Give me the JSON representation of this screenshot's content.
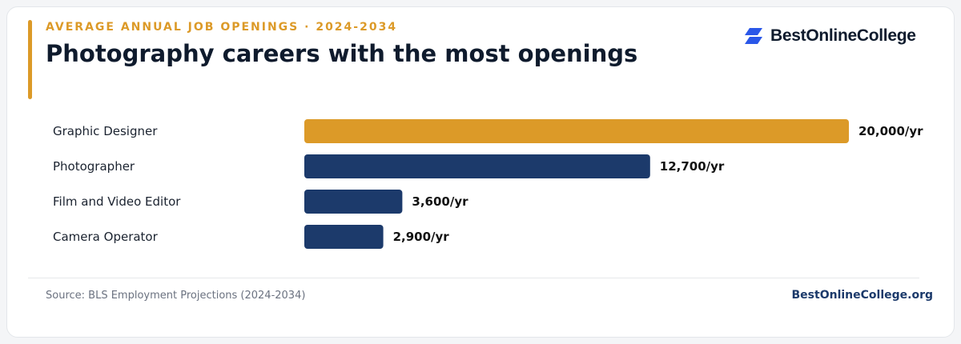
{
  "header": {
    "eyebrow": "AVERAGE ANNUAL JOB OPENINGS · 2024-2034",
    "title": "Photography careers with the most openings"
  },
  "logo": {
    "text": "BestOnlineCollege",
    "icon": "brand-slash-icon"
  },
  "footer": {
    "source": "Source: BLS Employment Projections (2024-2034)",
    "site": "BestOnlineCollege.org"
  },
  "colors": {
    "accent": "#dc9a28",
    "bar_primary": "#1c3a6b",
    "bar_highlight": "#dc9a28",
    "logo_blue": "#2a57e8"
  },
  "chart_data": {
    "type": "bar",
    "orientation": "horizontal",
    "categories": [
      "Graphic Designer",
      "Photographer",
      "Film and Video Editor",
      "Camera Operator"
    ],
    "values": [
      20000,
      12700,
      3600,
      2900
    ],
    "value_labels": [
      "20,000/yr",
      "12,700/yr",
      "3,600/yr",
      "2,900/yr"
    ],
    "highlight_index": 0,
    "xlim": [
      0,
      20000
    ],
    "grid": false,
    "legend": "none"
  }
}
